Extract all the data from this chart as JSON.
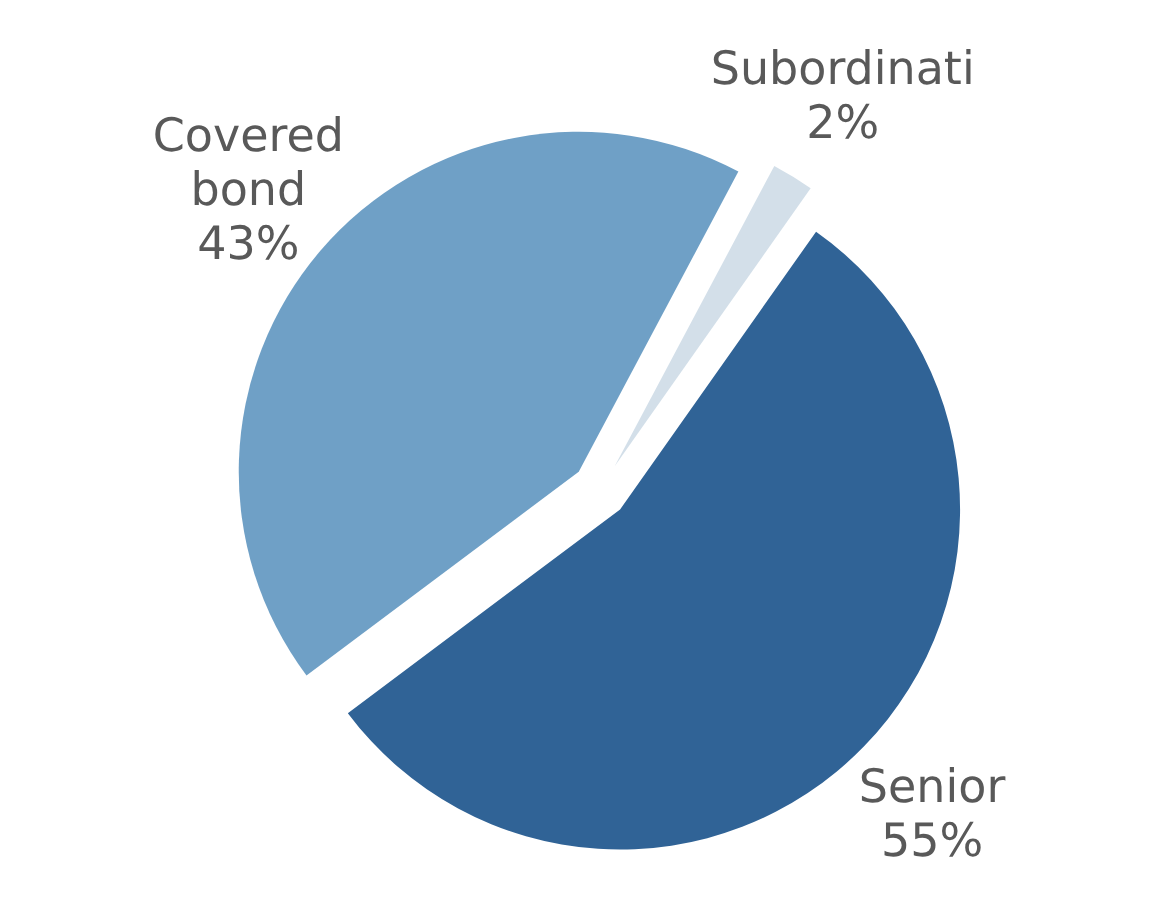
{
  "chart_data": {
    "type": "pie",
    "categories": [
      "Subordinati",
      "Senior",
      "Covered bond"
    ],
    "values": [
      2,
      55,
      43
    ],
    "colors": [
      "#d3dfe9",
      "#306396",
      "#6fa0c6"
    ],
    "value_labels": [
      "2%",
      "55%",
      "43%"
    ]
  }
}
